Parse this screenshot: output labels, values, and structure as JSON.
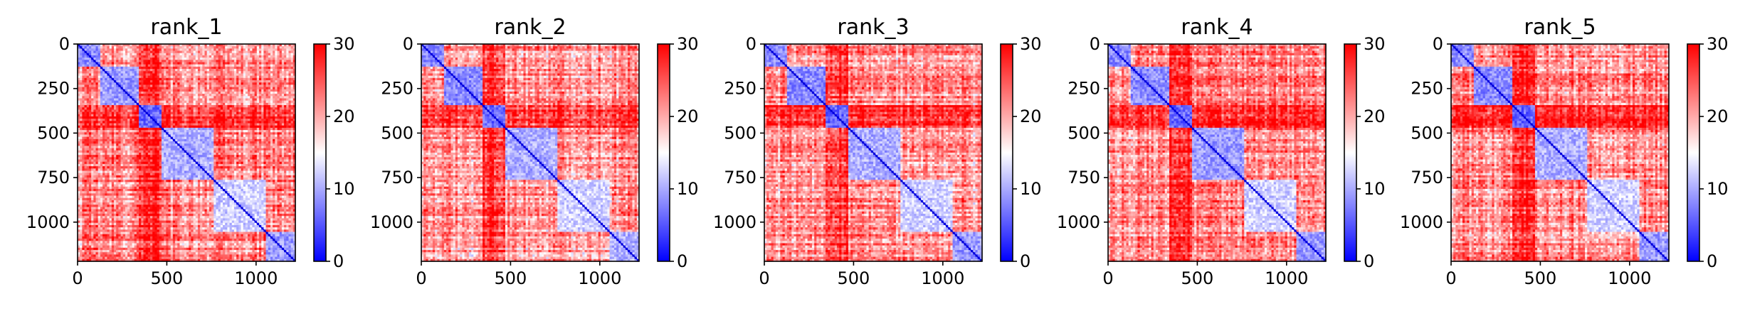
{
  "figure": {
    "colormap": "bwr",
    "colors": {
      "low": "#0000ff",
      "mid": "#ffffff",
      "high": "#ff0000"
    }
  },
  "chart_data": [
    {
      "type": "heatmap",
      "title": "rank_1",
      "xlabel": "",
      "ylabel": "",
      "xlim": [
        0,
        1220
      ],
      "ylim": [
        1220,
        0
      ],
      "xticks": [
        0,
        500,
        1000
      ],
      "yticks": [
        0,
        250,
        500,
        750,
        1000
      ],
      "colorbar": {
        "vmin": 0,
        "vmax": 30,
        "ticks": [
          0,
          10,
          20,
          30
        ]
      },
      "grid": false,
      "blocks": [
        {
          "range": [
            0,
            130
          ],
          "level": 8
        },
        {
          "range": [
            130,
            345
          ],
          "level": 9
        },
        {
          "range": [
            345,
            465
          ],
          "level": 6
        },
        {
          "range": [
            465,
            760
          ],
          "level": 10
        },
        {
          "range": [
            760,
            1060
          ],
          "level": 12
        },
        {
          "range": [
            1060,
            1220
          ],
          "level": 9
        }
      ],
      "interblock_level": 22
    },
    {
      "type": "heatmap",
      "title": "rank_2",
      "xlabel": "",
      "ylabel": "",
      "xlim": [
        0,
        1220
      ],
      "ylim": [
        1220,
        0
      ],
      "xticks": [
        0,
        500,
        1000
      ],
      "yticks": [
        0,
        250,
        500,
        750,
        1000
      ],
      "colorbar": {
        "vmin": 0,
        "vmax": 30,
        "ticks": [
          0,
          10,
          20,
          30
        ]
      },
      "grid": false,
      "blocks": [
        {
          "range": [
            0,
            130
          ],
          "level": 8
        },
        {
          "range": [
            130,
            345
          ],
          "level": 8
        },
        {
          "range": [
            345,
            465
          ],
          "level": 6
        },
        {
          "range": [
            465,
            760
          ],
          "level": 10
        },
        {
          "range": [
            760,
            1060
          ],
          "level": 12
        },
        {
          "range": [
            1060,
            1220
          ],
          "level": 10
        }
      ],
      "interblock_level": 21
    },
    {
      "type": "heatmap",
      "title": "rank_3",
      "xlabel": "",
      "ylabel": "",
      "xlim": [
        0,
        1220
      ],
      "ylim": [
        1220,
        0
      ],
      "xticks": [
        0,
        500,
        1000
      ],
      "yticks": [
        0,
        250,
        500,
        750,
        1000
      ],
      "colorbar": {
        "vmin": 0,
        "vmax": 30,
        "ticks": [
          0,
          10,
          20,
          30
        ]
      },
      "grid": false,
      "blocks": [
        {
          "range": [
            0,
            130
          ],
          "level": 8
        },
        {
          "range": [
            130,
            345
          ],
          "level": 8
        },
        {
          "range": [
            345,
            465
          ],
          "level": 6
        },
        {
          "range": [
            465,
            760
          ],
          "level": 10
        },
        {
          "range": [
            760,
            1060
          ],
          "level": 12
        },
        {
          "range": [
            1060,
            1220
          ],
          "level": 9
        }
      ],
      "interblock_level": 21
    },
    {
      "type": "heatmap",
      "title": "rank_4",
      "xlabel": "",
      "ylabel": "",
      "xlim": [
        0,
        1220
      ],
      "ylim": [
        1220,
        0
      ],
      "xticks": [
        0,
        500,
        1000
      ],
      "yticks": [
        0,
        250,
        500,
        750,
        1000
      ],
      "colorbar": {
        "vmin": 0,
        "vmax": 30,
        "ticks": [
          0,
          10,
          20,
          30
        ]
      },
      "grid": false,
      "blocks": [
        {
          "range": [
            0,
            130
          ],
          "level": 8
        },
        {
          "range": [
            130,
            345
          ],
          "level": 8
        },
        {
          "range": [
            345,
            465
          ],
          "level": 6
        },
        {
          "range": [
            465,
            760
          ],
          "level": 9
        },
        {
          "range": [
            760,
            1060
          ],
          "level": 12
        },
        {
          "range": [
            1060,
            1220
          ],
          "level": 9
        }
      ],
      "interblock_level": 22
    },
    {
      "type": "heatmap",
      "title": "rank_5",
      "xlabel": "",
      "ylabel": "",
      "xlim": [
        0,
        1220
      ],
      "ylim": [
        1220,
        0
      ],
      "xticks": [
        0,
        500,
        1000
      ],
      "yticks": [
        0,
        250,
        500,
        750,
        1000
      ],
      "colorbar": {
        "vmin": 0,
        "vmax": 30,
        "ticks": [
          0,
          10,
          20,
          30
        ]
      },
      "grid": false,
      "blocks": [
        {
          "range": [
            0,
            130
          ],
          "level": 8
        },
        {
          "range": [
            130,
            345
          ],
          "level": 8
        },
        {
          "range": [
            345,
            465
          ],
          "level": 6
        },
        {
          "range": [
            465,
            760
          ],
          "level": 10
        },
        {
          "range": [
            760,
            1060
          ],
          "level": 12
        },
        {
          "range": [
            1060,
            1220
          ],
          "level": 9
        }
      ],
      "interblock_level": 22
    }
  ]
}
